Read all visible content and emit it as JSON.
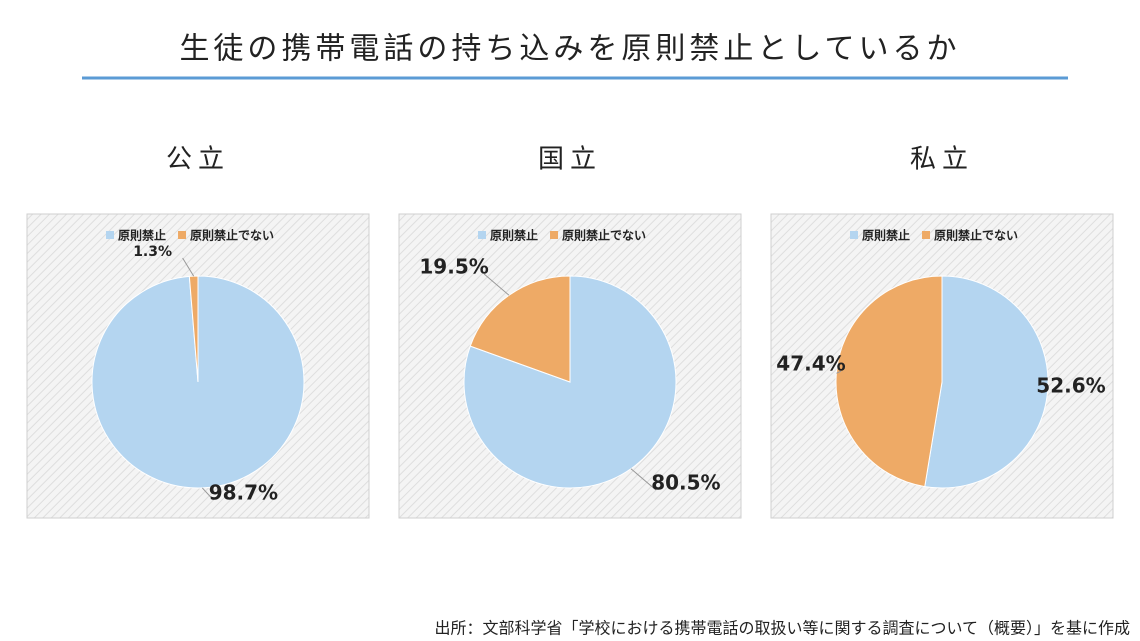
{
  "title": "生徒の携帯電話の持ち込みを原則禁止としているか",
  "source": "出所：文部科学省「学校における携帯電話の取扱い等に関する調査について（概要）」を基に作成",
  "chart_data": [
    {
      "type": "pie",
      "title": "公立",
      "categories": [
        "原則禁止",
        "原則禁止でない"
      ],
      "values": [
        98.7,
        1.3
      ],
      "value_labels": [
        "98.7%",
        "1.3%"
      ],
      "colors": [
        "#b4d5f0",
        "#eeaa66"
      ]
    },
    {
      "type": "pie",
      "title": "国立",
      "categories": [
        "原則禁止",
        "原則禁止でない"
      ],
      "values": [
        80.5,
        19.5
      ],
      "value_labels": [
        "80.5%",
        "19.5%"
      ],
      "colors": [
        "#b4d5f0",
        "#eeaa66"
      ]
    },
    {
      "type": "pie",
      "title": "私立",
      "categories": [
        "原則禁止",
        "原則禁止でない"
      ],
      "values": [
        52.6,
        47.4
      ],
      "value_labels": [
        "52.6%",
        "47.4%"
      ],
      "colors": [
        "#b4d5f0",
        "#eeaa66"
      ]
    }
  ]
}
